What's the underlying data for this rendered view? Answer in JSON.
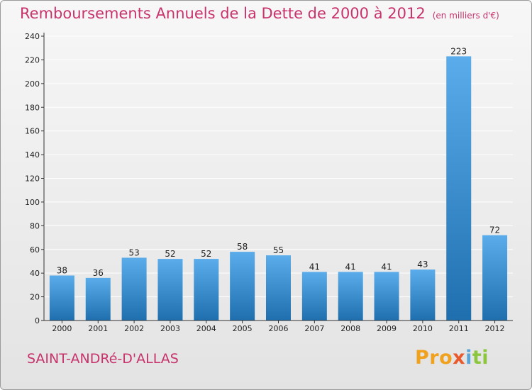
{
  "header": {
    "title": "Remboursements Annuels de la Dette de 2000 à 2012",
    "unit": "(en milliers d'€)"
  },
  "footer": {
    "commune": "SAINT-ANDRé-D'ALLAS",
    "logo_parts": [
      "Pro",
      "x",
      "i",
      "ti"
    ]
  },
  "colors": {
    "title": "#c8336c",
    "bar_top": "#5aacea",
    "bar_bottom": "#1f6fae",
    "grid": "#ffffff"
  },
  "chart_data": {
    "type": "bar",
    "title": "Remboursements Annuels de la Dette de 2000 à 2012",
    "subtitle": "(en milliers d'€)",
    "categories": [
      "2000",
      "2001",
      "2002",
      "2003",
      "2004",
      "2005",
      "2006",
      "2007",
      "2008",
      "2009",
      "2010",
      "2011",
      "2012"
    ],
    "values": [
      38,
      36,
      53,
      52,
      52,
      58,
      55,
      41,
      41,
      41,
      43,
      223,
      72
    ],
    "ylim": [
      0,
      240
    ],
    "yticks": [
      0,
      20,
      40,
      60,
      80,
      100,
      120,
      140,
      160,
      180,
      200,
      220,
      240
    ],
    "grid": true,
    "legend": "none"
  }
}
